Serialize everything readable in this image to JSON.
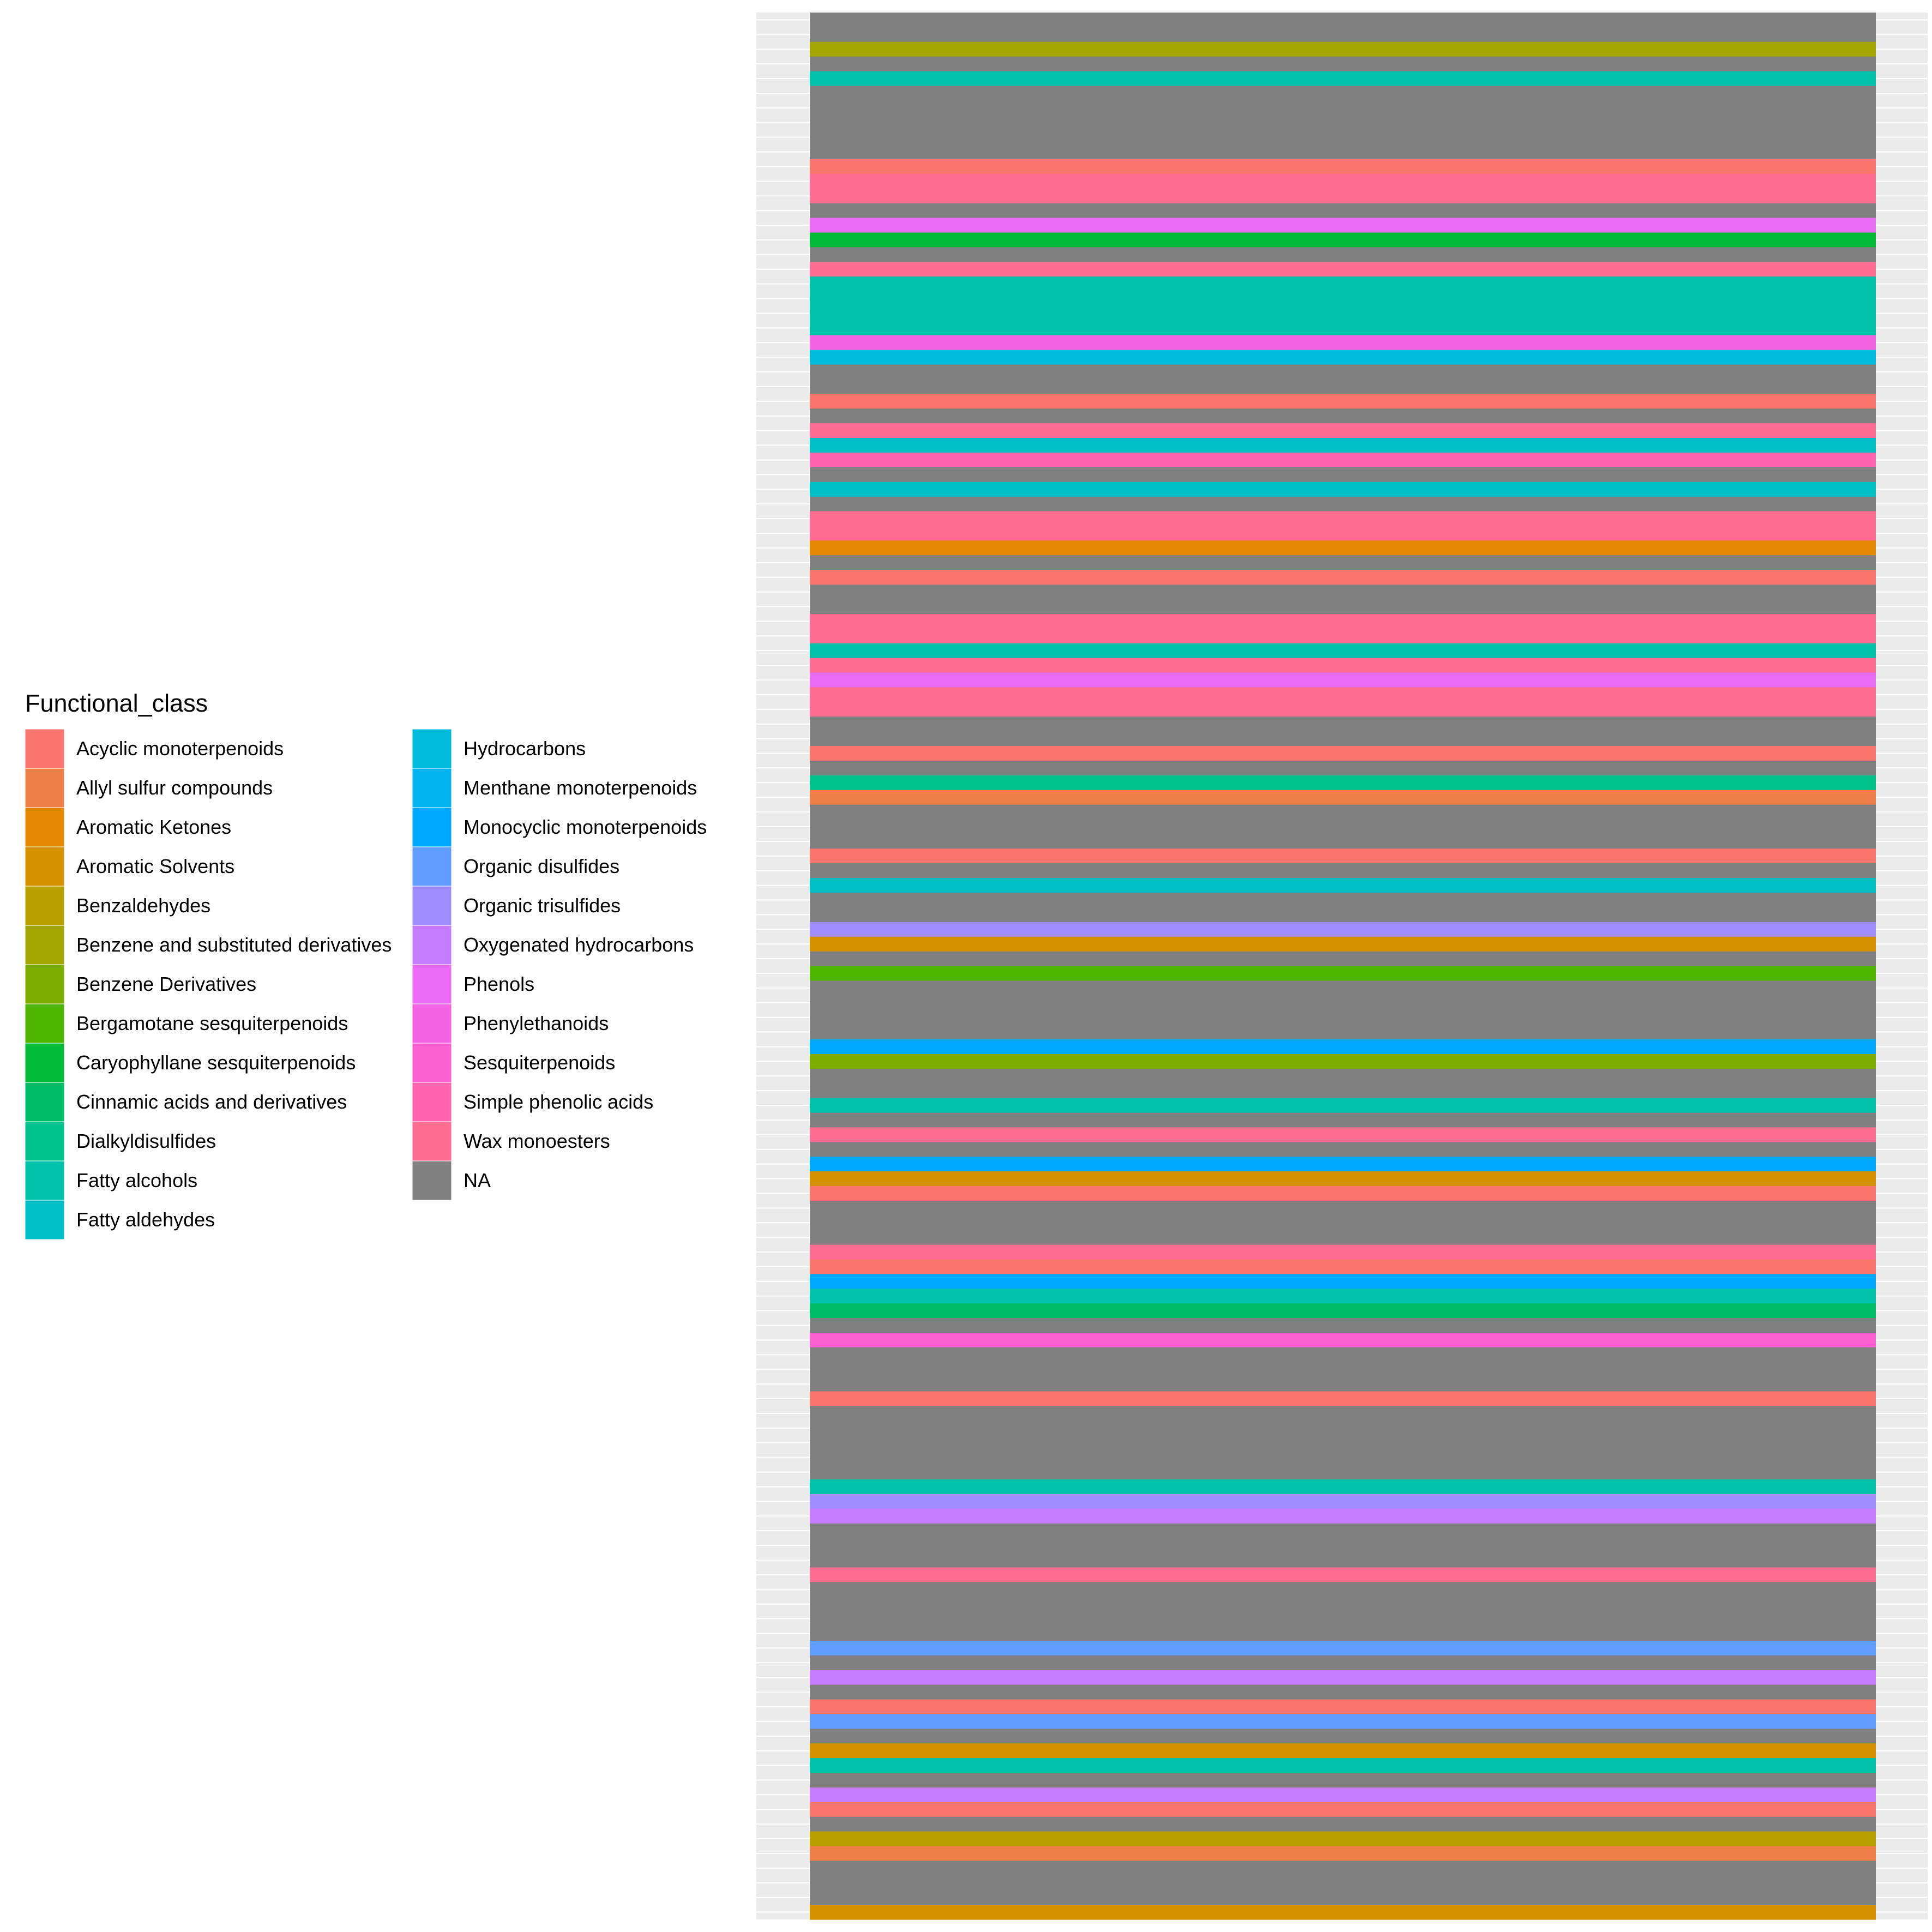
{
  "chart_data": {
    "type": "heatmap",
    "title": "",
    "xlabel": "",
    "ylabel": "",
    "grid": true,
    "legend_position": "left",
    "legend": {
      "title": "Functional_class",
      "entries": [
        {
          "label": "Acyclic monoterpenoids",
          "color": "#F8766D"
        },
        {
          "label": "Allyl sulfur compounds",
          "color": "#EF7F49"
        },
        {
          "label": "Aromatic Ketones",
          "color": "#E58700"
        },
        {
          "label": "Aromatic Solvents",
          "color": "#D69100"
        },
        {
          "label": "Benzaldehydes",
          "color": "#B79F00"
        },
        {
          "label": "Benzene and substituted derivatives",
          "color": "#A3A500"
        },
        {
          "label": "Benzene Derivatives",
          "color": "#7CAE00"
        },
        {
          "label": "Bergamotane sesquiterpenoids",
          "color": "#4FB400"
        },
        {
          "label": "Caryophyllane sesquiterpenoids",
          "color": "#00BA38"
        },
        {
          "label": "Cinnamic acids and derivatives",
          "color": "#00BE67"
        },
        {
          "label": "Dialkyldisulfides",
          "color": "#00C08B"
        },
        {
          "label": "Fatty alcohols",
          "color": "#00C1A9"
        },
        {
          "label": "Fatty aldehydes",
          "color": "#00BFC4"
        },
        {
          "label": "Hydrocarbons",
          "color": "#00BBDB"
        },
        {
          "label": "Menthane monoterpenoids",
          "color": "#00B4EF"
        },
        {
          "label": "Monocyclic monoterpenoids",
          "color": "#00A9FF"
        },
        {
          "label": "Organic disulfides",
          "color": "#619CFF"
        },
        {
          "label": "Organic trisulfides",
          "color": "#9F8CFF"
        },
        {
          "label": "Oxygenated hydrocarbons",
          "color": "#C77CFF"
        },
        {
          "label": "Phenols",
          "color": "#E76BF3"
        },
        {
          "label": "Phenylethanoids",
          "color": "#F564E3"
        },
        {
          "label": "Sesquiterpenoids",
          "color": "#FD61D1"
        },
        {
          "label": "Simple phenolic acids",
          "color": "#FF64B0"
        },
        {
          "label": "Wax monoesters",
          "color": "#FF6C91"
        },
        {
          "label": "NA",
          "color": "#808080"
        }
      ]
    },
    "rows": [
      "NA",
      "NA",
      "Benzene and substituted derivatives",
      "NA",
      "Fatty alcohols",
      "NA",
      "NA",
      "NA",
      "NA",
      "NA",
      "Acyclic monoterpenoids",
      "Wax monoesters",
      "Wax monoesters",
      "NA",
      "Phenols",
      "Caryophyllane sesquiterpenoids",
      "NA",
      "Wax monoesters",
      "Fatty alcohols",
      "Fatty alcohols",
      "Fatty alcohols",
      "Fatty alcohols",
      "Phenylethanoids",
      "Hydrocarbons",
      "NA",
      "NA",
      "Acyclic monoterpenoids",
      "NA",
      "Wax monoesters",
      "Fatty aldehydes",
      "Simple phenolic acids",
      "NA",
      "Fatty aldehydes",
      "NA",
      "Wax monoesters",
      "Wax monoesters",
      "Aromatic Ketones",
      "NA",
      "Acyclic monoterpenoids",
      "NA",
      "NA",
      "Wax monoesters",
      "Wax monoesters",
      "Fatty alcohols",
      "Wax monoesters",
      "Phenols",
      "Wax monoesters",
      "Wax monoesters",
      "NA",
      "NA",
      "Acyclic monoterpenoids",
      "NA",
      "Dialkyldisulfides",
      "Allyl sulfur compounds",
      "NA",
      "NA",
      "NA",
      "Acyclic monoterpenoids",
      "NA",
      "Fatty aldehydes",
      "NA",
      "NA",
      "Organic trisulfides",
      "Aromatic Solvents",
      "NA",
      "Bergamotane sesquiterpenoids",
      "NA",
      "NA",
      "NA",
      "NA",
      "Monocyclic monoterpenoids",
      "Benzene Derivatives",
      "NA",
      "NA",
      "Fatty alcohols",
      "NA",
      "Wax monoesters",
      "NA",
      "Monocyclic monoterpenoids",
      "Aromatic Solvents",
      "Acyclic monoterpenoids",
      "NA",
      "NA",
      "NA",
      "Wax monoesters",
      "Acyclic monoterpenoids",
      "Monocyclic monoterpenoids",
      "Fatty alcohols",
      "Cinnamic acids and derivatives",
      "NA",
      "Sesquiterpenoids",
      "NA",
      "NA",
      "NA",
      "Acyclic monoterpenoids",
      "NA",
      "NA",
      "NA",
      "NA",
      "NA",
      "Fatty alcohols",
      "Organic trisulfides",
      "Oxygenated hydrocarbons",
      "NA",
      "NA",
      "NA",
      "Wax monoesters",
      "NA",
      "NA",
      "NA",
      "NA",
      "Organic disulfides",
      "NA",
      "Oxygenated hydrocarbons",
      "NA",
      "Acyclic monoterpenoids",
      "Organic disulfides",
      "NA",
      "Aromatic Solvents",
      "Fatty alcohols",
      "NA",
      "Oxygenated hydrocarbons",
      "Acyclic monoterpenoids",
      "NA",
      "Benzaldehydes",
      "Allyl sulfur compounds",
      "NA",
      "NA",
      "NA",
      "Aromatic Solvents"
    ]
  }
}
